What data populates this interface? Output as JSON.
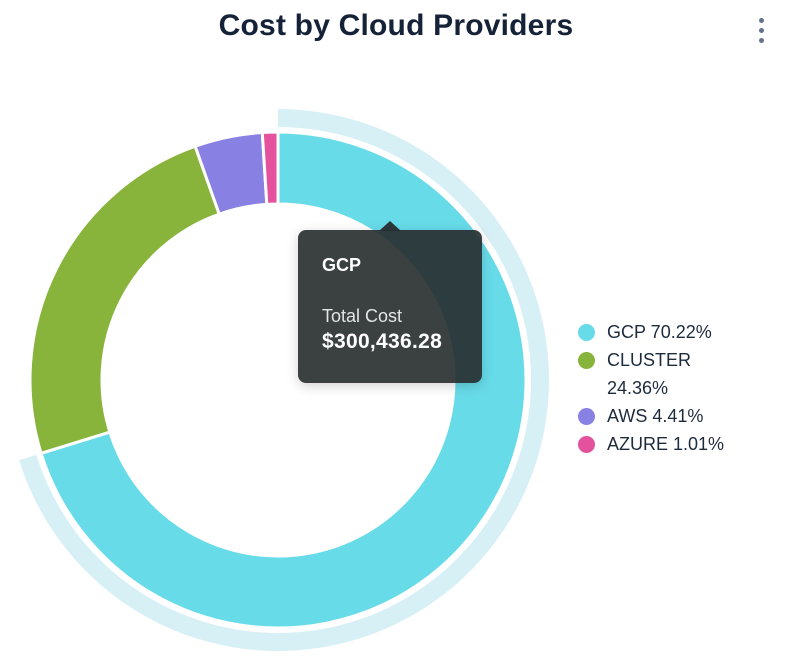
{
  "header": {
    "title": "Cost by Cloud Providers"
  },
  "icons": {
    "menu": "kebab-menu-icon"
  },
  "chart_data": {
    "type": "pie",
    "subtype": "donut",
    "title": "Cost by Cloud Providers",
    "clockwise": true,
    "start_angle_deg": 0,
    "segments": [
      {
        "name": "GCP",
        "percent": 70.22,
        "color": "#68DBE9",
        "highlighted": true
      },
      {
        "name": "CLUSTER",
        "percent": 24.36,
        "color": "#89B43C",
        "highlighted": false
      },
      {
        "name": "AWS",
        "percent": 4.41,
        "color": "#8980E4",
        "highlighted": false
      },
      {
        "name": "AZURE",
        "percent": 1.01,
        "color": "#E4529D",
        "highlighted": false
      }
    ],
    "highlight_ring_color": "#D7F0F6",
    "legend": {
      "position": "right",
      "items": [
        {
          "label": "GCP 70.22%",
          "color": "#68DBE9"
        },
        {
          "label": "CLUSTER 24.36%",
          "color": "#89B43C"
        },
        {
          "label": "AWS 4.41%",
          "color": "#8980E4"
        },
        {
          "label": "AZURE 1.01%",
          "color": "#E4529D"
        }
      ]
    },
    "tooltip": {
      "segment": "GCP",
      "label": "Total Cost",
      "value": "$300,436.28"
    }
  }
}
